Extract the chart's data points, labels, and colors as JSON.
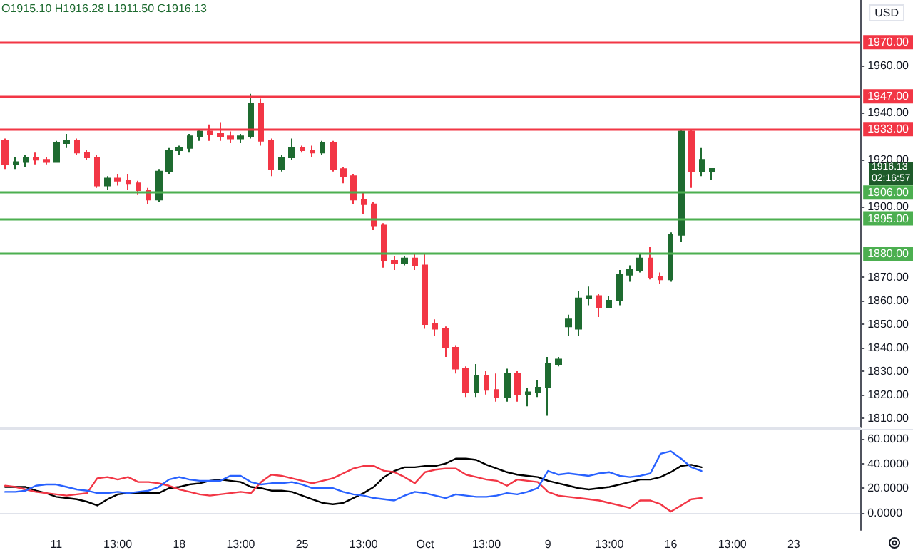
{
  "chart_data": [
    {
      "type": "candlestick",
      "annotations": [
        "O1915.10 H1916.28 L1911.50 C1916.13",
        "USD",
        "1916.13\n02:16:57"
      ],
      "categories": [
        null,
        null,
        null,
        null,
        null,
        null,
        null,
        null,
        null,
        null,
        null,
        null,
        null,
        null,
        null,
        null,
        null,
        null,
        null,
        null,
        null,
        null,
        null,
        null,
        null,
        null,
        null,
        null,
        null,
        null,
        null,
        null,
        null,
        null,
        null,
        null,
        null,
        null,
        null,
        null,
        null,
        null,
        null,
        null,
        null,
        null,
        null,
        null,
        null,
        null,
        null,
        null,
        null,
        null,
        null,
        null,
        null,
        null,
        null,
        null,
        null,
        null,
        null,
        null,
        null,
        null,
        null,
        null,
        null,
        null,
        null,
        null,
        null,
        null,
        null,
        null,
        null,
        null,
        null,
        null,
        null,
        null,
        null,
        null
      ],
      "ohlc": [
        [
          1928,
          1929,
          1916,
          1918
        ],
        [
          1918,
          1921,
          1916,
          1919
        ],
        [
          1919,
          1922,
          1917,
          1921
        ],
        [
          1921,
          1923,
          1918,
          1920
        ],
        [
          1920,
          1921,
          1918,
          1919
        ],
        [
          1919,
          1928,
          1919,
          1927
        ],
        [
          1927,
          1931,
          1925,
          1928
        ],
        [
          1928,
          1929,
          1922,
          1923
        ],
        [
          1923,
          1924,
          1920,
          1921
        ],
        [
          1921,
          1922,
          1908,
          1909
        ],
        [
          1909,
          1913,
          1907,
          1912
        ],
        [
          1912,
          1914,
          1909,
          1911
        ],
        [
          1911,
          1914,
          1907,
          1910
        ],
        [
          1910,
          1911,
          1905,
          1907
        ],
        [
          1907,
          1908,
          1901,
          1903
        ],
        [
          1903,
          1916,
          1902,
          1915
        ],
        [
          1915,
          1925,
          1914,
          1924
        ],
        [
          1924,
          1926,
          1922,
          1925
        ],
        [
          1925,
          1931,
          1923,
          1930
        ],
        [
          1930,
          1933,
          1928,
          1932
        ],
        [
          1932,
          1935,
          1928,
          1931
        ],
        [
          1931,
          1936,
          1928,
          1930
        ],
        [
          1930,
          1932,
          1927,
          1929
        ],
        [
          1929,
          1931,
          1927,
          1930
        ],
        [
          1930,
          1948,
          1929,
          1944
        ],
        [
          1944,
          1946,
          1926,
          1928
        ],
        [
          1928,
          1929,
          1913,
          1916
        ],
        [
          1916,
          1922,
          1915,
          1921
        ],
        [
          1921,
          1929,
          1920,
          1925
        ],
        [
          1925,
          1926,
          1923,
          1924
        ],
        [
          1924,
          1926,
          1921,
          1923
        ],
        [
          1923,
          1928,
          1922,
          1927
        ],
        [
          1927,
          1928,
          1915,
          1916
        ],
        [
          1916,
          1917,
          1910,
          1913
        ],
        [
          1913,
          1914,
          1901,
          1903
        ],
        [
          1903,
          1906,
          1897,
          1901
        ],
        [
          1901,
          1902,
          1890,
          1892
        ],
        [
          1892,
          1893,
          1874,
          1877
        ],
        [
          1877,
          1879,
          1873,
          1876
        ],
        [
          1876,
          1879,
          1875,
          1878
        ],
        [
          1878,
          1880,
          1873,
          1875
        ],
        [
          1875,
          1880,
          1848,
          1850
        ],
        [
          1850,
          1852,
          1845,
          1848
        ],
        [
          1848,
          1849,
          1836,
          1840
        ],
        [
          1840,
          1841,
          1829,
          1831
        ],
        [
          1831,
          1832,
          1819,
          1821
        ],
        [
          1821,
          1833,
          1819,
          1828
        ],
        [
          1828,
          1830,
          1820,
          1822
        ],
        [
          1822,
          1829,
          1817,
          1819
        ],
        [
          1819,
          1831,
          1817,
          1829
        ],
        [
          1829,
          1830,
          1817,
          1820
        ],
        [
          1820,
          1823,
          1815,
          1821
        ],
        [
          1821,
          1826,
          1819,
          1823
        ],
        [
          1823,
          1836,
          1811,
          1833
        ],
        [
          1833,
          1836,
          1832,
          1835
        ],
        [
          1849,
          1854,
          1845,
          1852
        ],
        [
          1848,
          1864,
          1845,
          1861
        ],
        [
          1861,
          1866,
          1858,
          1862
        ],
        [
          1862,
          1863,
          1853,
          1857
        ],
        [
          1857,
          1862,
          1857,
          1860
        ],
        [
          1860,
          1873,
          1858,
          1871
        ],
        [
          1871,
          1875,
          1868,
          1873
        ],
        [
          1873,
          1880,
          1872,
          1878
        ],
        [
          1878,
          1883,
          1869,
          1870
        ],
        [
          1870,
          1872,
          1867,
          1869
        ],
        [
          1869,
          1889,
          1868,
          1888
        ],
        [
          1888,
          1933,
          1885,
          1932
        ],
        [
          1932,
          1933,
          1908,
          1915
        ],
        [
          1915,
          1925,
          1913,
          1920
        ],
        [
          1915.1,
          1916.28,
          1911.5,
          1916.13
        ],
        null,
        null,
        null,
        null,
        null,
        null,
        null,
        null,
        null,
        null,
        null,
        null,
        null,
        null
      ],
      "colors": [
        "#f23645",
        "#1e6b30",
        "#1e6b30",
        "#f23645",
        "#f23645",
        "#1e6b30",
        "#1e6b30",
        "#f23645",
        "#f23645",
        "#f23645",
        "#1e6b30",
        "#f23645",
        "#f23645",
        "#f23645",
        "#f23645",
        "#1e6b30",
        "#1e6b30",
        "#1e6b30",
        "#1e6b30",
        "#1e6b30",
        "#f23645",
        "#f23645",
        "#f23645",
        "#1e6b30",
        "#1e6b30",
        "#f23645",
        "#f23645",
        "#1e6b30",
        "#1e6b30",
        "#f23645",
        "#f23645",
        "#1e6b30",
        "#f23645",
        "#f23645",
        "#f23645",
        "#f23645",
        "#f23645",
        "#f23645",
        "#f23645",
        "#1e6b30",
        "#f23645",
        "#f23645",
        "#f23645",
        "#f23645",
        "#f23645",
        "#f23645",
        "#1e6b30",
        "#f23645",
        "#f23645",
        "#1e6b30",
        "#f23645",
        "#1e6b30",
        "#1e6b30",
        "#1e6b30",
        "#1e6b30",
        "#1e6b30",
        "#1e6b30",
        "#1e6b30",
        "#f23645",
        "#1e6b30",
        "#1e6b30",
        "#1e6b30",
        "#1e6b30",
        "#f23645",
        "#f23645",
        "#1e6b30",
        "#1e6b30",
        "#f23645",
        "#1e6b30",
        "#1e6b30",
        null,
        null,
        null,
        null,
        null,
        null,
        null,
        null,
        null,
        null,
        null,
        null,
        null,
        null
      ],
      "ylim": [
        1806,
        1988
      ],
      "yticks": [
        {
          "value": 1810,
          "label": "1810.00"
        },
        {
          "value": 1820,
          "label": "1820.00"
        },
        {
          "value": 1830,
          "label": "1830.00"
        },
        {
          "value": 1840,
          "label": "1840.00"
        },
        {
          "value": 1850,
          "label": "1850.00"
        },
        {
          "value": 1860,
          "label": "1860.00"
        },
        {
          "value": 1870,
          "label": "1870.00"
        },
        {
          "value": 1900,
          "label": "1900.00"
        },
        {
          "value": 1920,
          "label": "1920.00"
        },
        {
          "value": 1940,
          "label": "1940.00"
        },
        {
          "value": 1960,
          "label": "1960.00"
        }
      ],
      "ref_lines": [
        {
          "axis": "y",
          "value": 1970,
          "label": "1970.00",
          "color": "#f23645"
        },
        {
          "axis": "y",
          "value": 1947,
          "label": "1947.00",
          "color": "#f23645"
        },
        {
          "axis": "y",
          "value": 1933,
          "label": "1933.00",
          "color": "#f23645"
        },
        {
          "axis": "y",
          "value": 1906,
          "label": "1906.00",
          "color": "#4caf50"
        },
        {
          "axis": "y",
          "value": 1895,
          "label": "1895.00",
          "color": "#4caf50"
        },
        {
          "axis": "y",
          "value": 1880,
          "label": "1880.00",
          "color": "#4caf50"
        }
      ],
      "tick_labels": "y",
      "grid": false
    },
    {
      "type": "line",
      "categories": [
        null,
        null,
        null,
        null,
        null,
        "11",
        null,
        null,
        null,
        null,
        null,
        "13:00",
        null,
        null,
        null,
        null,
        null,
        "18",
        null,
        null,
        null,
        null,
        null,
        "13:00",
        null,
        null,
        null,
        null,
        null,
        "25",
        null,
        null,
        null,
        null,
        null,
        "13:00",
        null,
        null,
        null,
        null,
        null,
        "Oct",
        null,
        null,
        null,
        null,
        null,
        "13:00",
        null,
        null,
        null,
        null,
        null,
        "9",
        null,
        null,
        null,
        null,
        null,
        "13:00",
        null,
        null,
        null,
        null,
        null,
        "16",
        null,
        null,
        null,
        null,
        null,
        "13:00",
        null,
        null,
        null,
        null,
        null,
        "23",
        null,
        null,
        null,
        null,
        null,
        null
      ],
      "series": [
        {
          "color": "#000000",
          "values": [
            21,
            21,
            21,
            18,
            16,
            13,
            12,
            11,
            9,
            6,
            11,
            15,
            16,
            16,
            16,
            16,
            20,
            21,
            23,
            24,
            26,
            27,
            26,
            25,
            21,
            20,
            18,
            18,
            17,
            14,
            11,
            8,
            7,
            8,
            12,
            16,
            21,
            29,
            34,
            37,
            37,
            38,
            38,
            40,
            44,
            44,
            43,
            39,
            36,
            33,
            31,
            30,
            29,
            26,
            24,
            22,
            20,
            19,
            20,
            21,
            23,
            25,
            27,
            27,
            29,
            33,
            38,
            39,
            37,
            null,
            null,
            null,
            null,
            null,
            null,
            null,
            null,
            null,
            null,
            null,
            null,
            null,
            null,
            null
          ]
        },
        {
          "color": "#f23645",
          "values": [
            22,
            21,
            19,
            17,
            16,
            15,
            14,
            15,
            16,
            28,
            29,
            27,
            29,
            25,
            25,
            24,
            22,
            19,
            17,
            15,
            14,
            15,
            16,
            17,
            16,
            25,
            31,
            30,
            28,
            26,
            24,
            26,
            28,
            32,
            36,
            38,
            38,
            34,
            33,
            29,
            24,
            33,
            35,
            36,
            36,
            31,
            29,
            27,
            26,
            22,
            27,
            26,
            25,
            17,
            14,
            13,
            12,
            11,
            10,
            8,
            6,
            4,
            10,
            10,
            7,
            1,
            6,
            11,
            12,
            null,
            null,
            null,
            null,
            null,
            null,
            null,
            null,
            null,
            null,
            null,
            null,
            null,
            null,
            null
          ]
        },
        {
          "color": "#2962ff",
          "values": [
            17,
            17,
            18,
            22,
            23,
            23,
            21,
            19,
            18,
            16,
            16,
            17,
            16,
            17,
            18,
            21,
            27,
            29,
            27,
            26,
            26,
            26,
            30,
            30,
            25,
            23,
            24,
            24,
            25,
            23,
            20,
            20,
            20,
            17,
            15,
            14,
            12,
            11,
            10,
            14,
            17,
            16,
            14,
            12,
            15,
            14,
            13,
            13,
            14,
            16,
            15,
            17,
            20,
            34,
            31,
            32,
            31,
            30,
            32,
            33,
            30,
            29,
            30,
            32,
            48,
            50,
            44,
            37,
            34,
            null,
            null,
            null,
            null,
            null,
            null,
            null,
            null,
            null,
            null,
            null,
            null,
            null,
            null,
            null
          ]
        }
      ],
      "ylim": [
        -14,
        67
      ],
      "yticks": [
        {
          "value": 0,
          "label": "0.0000"
        },
        {
          "value": 20,
          "label": "20.0000"
        },
        {
          "value": 40,
          "label": "40.0000"
        },
        {
          "value": 60,
          "label": "60.0000"
        }
      ],
      "line_style": "solid",
      "grid": false
    }
  ]
}
